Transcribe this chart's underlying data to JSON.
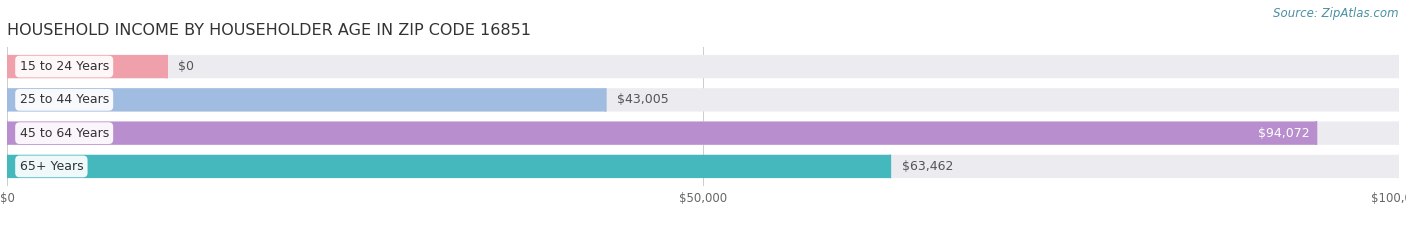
{
  "title": "HOUSEHOLD INCOME BY HOUSEHOLDER AGE IN ZIP CODE 16851",
  "source": "Source: ZipAtlas.com",
  "categories": [
    "15 to 24 Years",
    "25 to 44 Years",
    "45 to 64 Years",
    "65+ Years"
  ],
  "values": [
    0,
    43005,
    94072,
    63462
  ],
  "bar_colors": [
    "#f0a0aa",
    "#a0bce0",
    "#b88ece",
    "#45b8be"
  ],
  "bar_bg_color": "#ebebf0",
  "background_color": "#ffffff",
  "xlim": [
    0,
    100000
  ],
  "xtick_labels": [
    "$0",
    "$50,000",
    "$100,000"
  ],
  "value_labels": [
    "$0",
    "$43,005",
    "$94,072",
    "$63,462"
  ],
  "title_fontsize": 11.5,
  "label_fontsize": 9,
  "tick_fontsize": 8.5,
  "source_fontsize": 8.5
}
